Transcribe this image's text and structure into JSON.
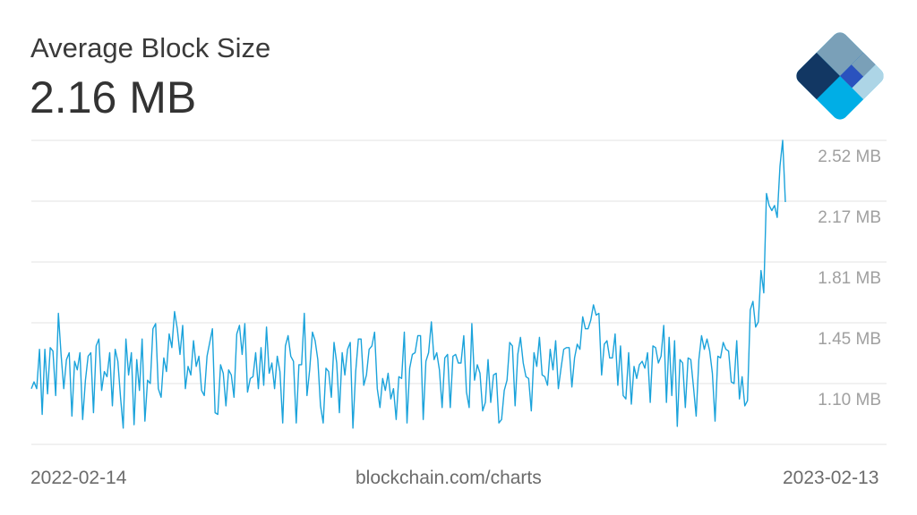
{
  "header": {
    "title": "Average Block Size",
    "current_value": "2.16 MB"
  },
  "footer": {
    "start_date": "2022-02-14",
    "source": "blockchain.com/charts",
    "end_date": "2023-02-13"
  },
  "logo": {
    "name": "blockchain-logo-icon",
    "colors": [
      "#7aa0b8",
      "#123763",
      "#2a52be",
      "#00aee6",
      "#add5e6"
    ]
  },
  "chart_data": {
    "type": "line",
    "title": "Average Block Size",
    "x_range": [
      "2022-02-14",
      "2023-02-13"
    ],
    "ylim": [
      0.745,
      2.52
    ],
    "y_ticks": [
      {
        "value": 2.52,
        "label": "2.52 MB"
      },
      {
        "value": 2.165,
        "label": "2.17 MB"
      },
      {
        "value": 1.81,
        "label": "1.81 MB"
      },
      {
        "value": 1.455,
        "label": "1.45 MB"
      },
      {
        "value": 1.1,
        "label": "1.10 MB"
      }
    ],
    "grid": true,
    "line_color": "#1ba3db",
    "values": [
      1.07,
      1.11,
      1.07,
      1.3,
      0.92,
      1.3,
      1.04,
      1.31,
      1.29,
      1.03,
      1.51,
      1.27,
      1.07,
      1.24,
      1.28,
      0.91,
      1.23,
      1.18,
      1.28,
      0.89,
      1.12,
      1.26,
      1.28,
      0.93,
      1.32,
      1.36,
      1.06,
      1.17,
      1.14,
      1.28,
      0.97,
      1.3,
      1.23,
      1.02,
      0.84,
      1.36,
      1.15,
      1.28,
      0.86,
      1.24,
      1.06,
      1.36,
      0.88,
      1.12,
      1.1,
      1.42,
      1.45,
      1.07,
      1.02,
      1.25,
      1.17,
      1.39,
      1.31,
      1.52,
      1.42,
      1.27,
      1.44,
      1.07,
      1.2,
      1.15,
      1.35,
      1.2,
      1.26,
      1.06,
      1.03,
      1.26,
      1.34,
      1.42,
      0.93,
      0.92,
      1.21,
      1.16,
      0.97,
      1.18,
      1.15,
      1.02,
      1.39,
      1.44,
      1.27,
      1.45,
      1.05,
      1.13,
      1.14,
      1.28,
      1.07,
      1.31,
      1.09,
      1.43,
      1.16,
      1.22,
      1.07,
      1.26,
      1.17,
      0.87,
      1.32,
      1.38,
      1.26,
      1.23,
      0.87,
      1.21,
      1.21,
      1.51,
      1.03,
      1.18,
      1.4,
      1.35,
      1.24,
      0.97,
      0.87,
      1.19,
      1.17,
      1.02,
      1.34,
      1.22,
      0.93,
      1.28,
      1.15,
      1.3,
      1.34,
      0.84,
      1.17,
      1.36,
      1.36,
      1.09,
      1.15,
      1.3,
      1.32,
      1.4,
      1.07,
      0.96,
      1.13,
      1.06,
      1.16,
      1.01,
      1.07,
      0.89,
      1.14,
      1.13,
      1.4,
      0.87,
      1.19,
      1.27,
      1.28,
      1.38,
      1.38,
      0.89,
      1.23,
      1.28,
      1.46,
      1.24,
      1.28,
      1.18,
      0.96,
      1.25,
      1.27,
      0.96,
      1.26,
      1.27,
      1.22,
      1.22,
      1.38,
      1.05,
      0.96,
      1.45,
      1.12,
      1.21,
      1.16,
      0.94,
      0.99,
      1.24,
      0.99,
      1.15,
      1.16,
      0.87,
      0.89,
      1.06,
      1.12,
      1.34,
      1.32,
      0.97,
      1.27,
      1.37,
      1.22,
      1.14,
      1.13,
      0.94,
      1.28,
      1.2,
      1.37,
      1.15,
      1.14,
      1.09,
      1.3,
      1.18,
      1.35,
      1.07,
      1.19,
      1.3,
      1.31,
      1.31,
      1.08,
      1.25,
      1.33,
      1.3,
      1.49,
      1.42,
      1.42,
      1.47,
      1.56,
      1.5,
      1.51,
      1.15,
      1.33,
      1.35,
      1.25,
      1.25,
      1.39,
      1.09,
      1.32,
      1.03,
      1.01,
      1.28,
      0.98,
      1.2,
      1.13,
      1.21,
      1.23,
      1.19,
      1.28,
      0.99,
      1.32,
      1.31,
      1.22,
      1.26,
      1.44,
      0.99,
      1.37,
      1.03,
      1.35,
      0.85,
      1.24,
      1.22,
      0.96,
      1.25,
      1.24,
      1.08,
      0.91,
      1.24,
      1.38,
      1.3,
      1.36,
      1.29,
      1.16,
      0.88,
      1.26,
      1.25,
      1.34,
      1.3,
      1.29,
      1.11,
      1.1,
      1.35,
      1.01,
      1.14,
      0.97,
      1.0,
      1.53,
      1.58,
      1.43,
      1.46,
      1.76,
      1.63,
      2.21,
      2.14,
      2.11,
      2.14,
      2.07,
      2.37,
      2.52,
      2.16
    ]
  }
}
